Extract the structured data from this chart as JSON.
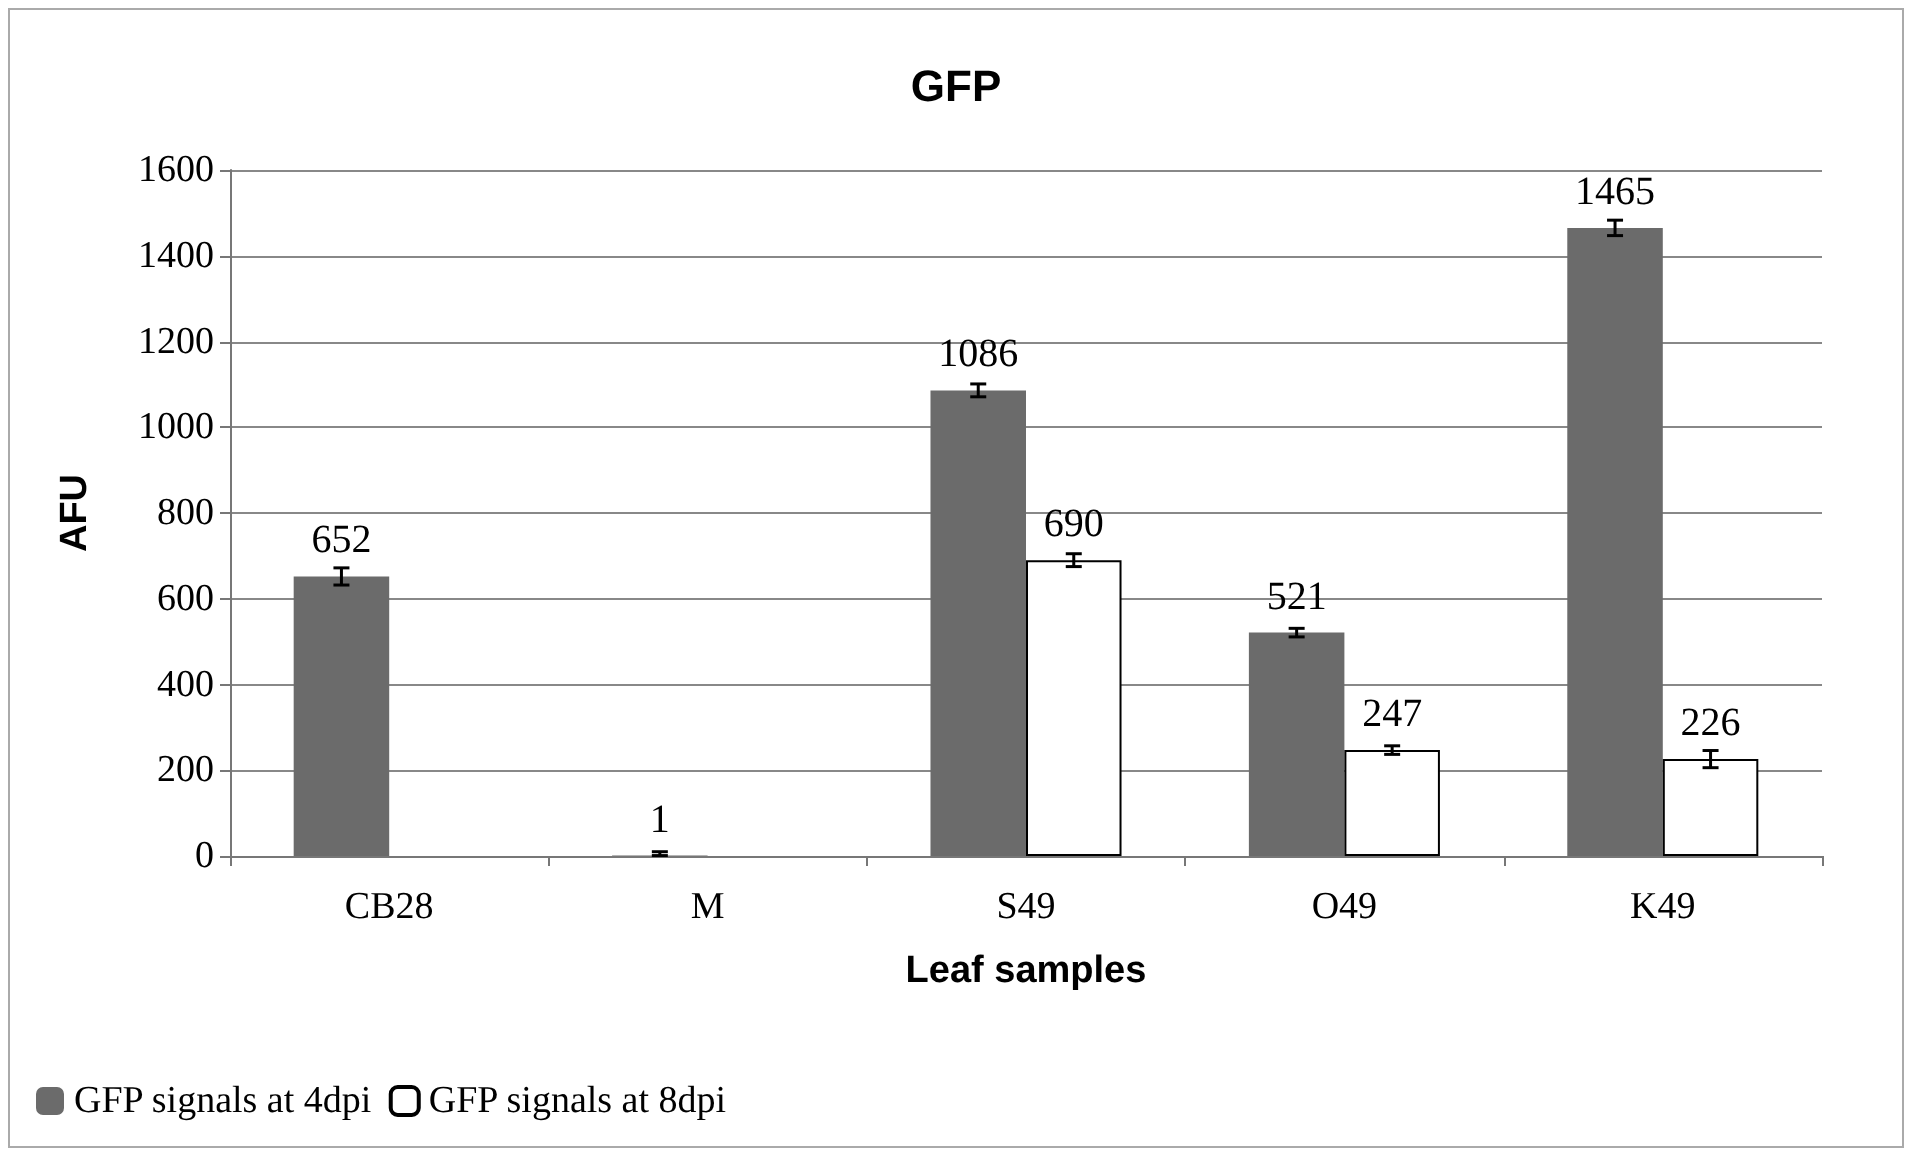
{
  "chart_data": {
    "type": "bar",
    "title": "GFP",
    "xlabel": "Leaf samples",
    "ylabel": "AFU",
    "categories": [
      "CB28",
      "M",
      "S49",
      "O49",
      "K49"
    ],
    "series": [
      {
        "name": "GFP signals at 4dpi",
        "color": "#6b6b6b",
        "values": [
          652,
          1,
          1086,
          521,
          1465
        ],
        "errors": [
          20,
          [
            1,
            10
          ],
          15,
          10,
          18
        ]
      },
      {
        "name": "GFP signals at 8dpi",
        "color": "#ffffff",
        "values": [
          null,
          null,
          690,
          247,
          226
        ],
        "errors": [
          null,
          null,
          15,
          10,
          20
        ]
      }
    ],
    "ylim": [
      0,
      1600
    ],
    "yticks": [
      0,
      200,
      400,
      600,
      800,
      {
        "value": 1000,
        "label": "1000"
      },
      {
        "value": 1200,
        "label": "1200"
      },
      {
        "value": 1400,
        "label": "1400"
      },
      {
        "value": 1600,
        "label": "1600"
      }
    ],
    "grid": "y",
    "legend": "bottom left",
    "data_labels": true
  }
}
